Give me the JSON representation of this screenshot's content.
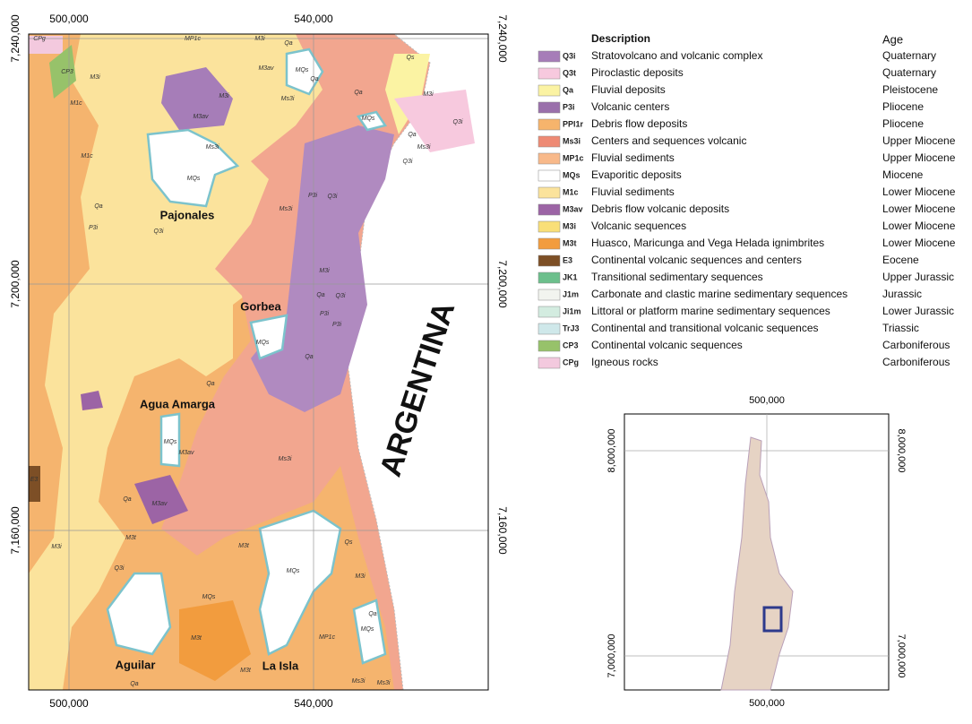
{
  "map": {
    "top_ticks": [
      "500,000",
      "540,000"
    ],
    "bottom_ticks": [
      "500,000",
      "540,000"
    ],
    "left_ticks": [
      "7,240,000",
      "7,200,000",
      "7,160,000"
    ],
    "right_ticks": [
      "7,240,000",
      "7,200,000",
      "7,160,000"
    ],
    "places": [
      "Pajonales",
      "Gorbea",
      "Agua Amarga",
      "Aguilar",
      "La Isla",
      "ARGENTINA"
    ],
    "unit_labels": [
      "CPg",
      "MP1c",
      "M3i",
      "Qa",
      "CP3",
      "M3av",
      "MQs",
      "M1c",
      "M3i",
      "M3i",
      "M3av",
      "Qa",
      "MQs",
      "Qs",
      "Ms3i",
      "Qa",
      "M3i",
      "Qa",
      "MQs",
      "Ms3i",
      "Q3i",
      "Q3i",
      "Ms3i",
      "M1c",
      "Qa",
      "Q3i",
      "P3i",
      "Ms3i",
      "P3i",
      "Q3i",
      "M3i",
      "Qa",
      "P3i",
      "MQs",
      "Q3i",
      "P3i",
      "Qa",
      "MQs",
      "M3av",
      "Qa",
      "Ms3i",
      "E3",
      "Qa",
      "M3av",
      "M3t",
      "M3t",
      "Q3i",
      "MQs",
      "Qs",
      "M3t",
      "MQs",
      "Qa",
      "M3i",
      "MP1c",
      "M3t",
      "Ms3i",
      "Qa",
      "MQs",
      "M3i",
      "Ms3i"
    ]
  },
  "legend": {
    "description_header": "Description",
    "age_header": "Age",
    "items": [
      {
        "code": "Q3i",
        "description": "Stratovolcano and volcanic complex",
        "age": "Quaternary",
        "color": "#a67db8"
      },
      {
        "code": "Q3t",
        "description": "Piroclastic deposits",
        "age": "Quaternary",
        "color": "#f7c9de"
      },
      {
        "code": "Qa",
        "description": "Fluvial deposits",
        "age": "Pleistocene",
        "color": "#fbf3a3"
      },
      {
        "code": "P3i",
        "description": "Volcanic centers",
        "age": "Pliocene",
        "color": "#9a70ab"
      },
      {
        "code": "PPl1r",
        "description": "Debris flow deposits",
        "age": "Pliocene",
        "color": "#f6b46c"
      },
      {
        "code": "Ms3i",
        "description": "Centers and sequences volcanic",
        "age": "Upper Miocene",
        "color": "#ee8a74"
      },
      {
        "code": "MP1c",
        "description": "Fluvial sediments",
        "age": "Upper Miocene",
        "color": "#f8b98a"
      },
      {
        "code": "MQs",
        "description": "Evaporitic deposits",
        "age": "Miocene",
        "color": "#ffffff"
      },
      {
        "code": "M1c",
        "description": "Fluvial sediments",
        "age": "Lower Miocene",
        "color": "#fbe39c"
      },
      {
        "code": "M3av",
        "description": "Debris flow volcanic deposits",
        "age": "Lower Miocene",
        "color": "#9c64a5"
      },
      {
        "code": "M3i",
        "description": "Volcanic sequences",
        "age": "Lower Miocene",
        "color": "#f9df78"
      },
      {
        "code": "M3t",
        "description": "Huasco, Maricunga and Vega Helada ignimbrites",
        "age": "Lower Miocene",
        "color": "#f29c3e"
      },
      {
        "code": "E3",
        "description": "Continental volcanic sequences and centers",
        "age": "Eocene",
        "color": "#7d4f26"
      },
      {
        "code": "JK1",
        "description": "Transitional sedimentary sequences",
        "age": "Upper Jurassic",
        "color": "#6cbf8c"
      },
      {
        "code": "J1m",
        "description": "Carbonate and clastic marine sedimentary sequences",
        "age": "Jurassic",
        "color": "#f2f4ef"
      },
      {
        "code": "Ji1m",
        "description": "Littoral or platform  marine sedimentary sequences",
        "age": "Lower Jurassic",
        "color": "#d3ece0"
      },
      {
        "code": "TrJ3",
        "description": "Continental and transitional volcanic sequences",
        "age": "Triassic",
        "color": "#cfe8ea"
      },
      {
        "code": "CP3",
        "description": "Continental volcanic sequences",
        "age": "Carboniferous",
        "color": "#97c26a"
      },
      {
        "code": "CPg",
        "description": "Igneous rocks",
        "age": "Carboniferous",
        "color": "#f3c9de"
      }
    ]
  },
  "inset": {
    "top_ticks": [
      "500,000"
    ],
    "bottom_ticks": [
      "500,000"
    ],
    "left_ticks": [
      "8,000,000",
      "7,000,000"
    ],
    "right_ticks": [
      "8,000,000",
      "7,000,000"
    ]
  }
}
